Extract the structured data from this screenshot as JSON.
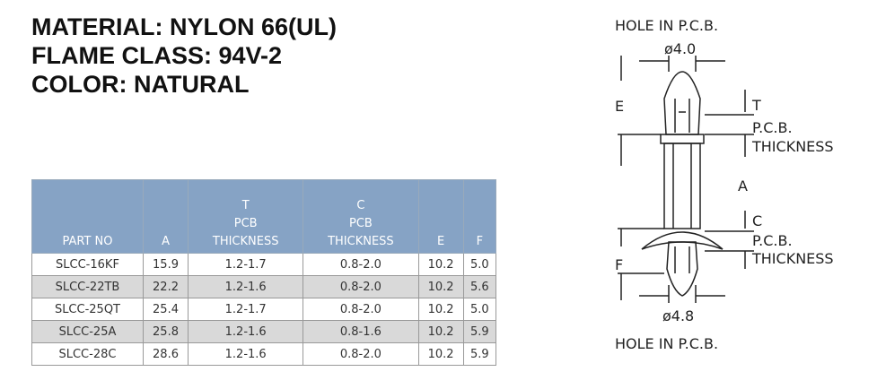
{
  "header": {
    "lines": [
      "MATERIAL: NYLON 66(UL)",
      "FLAME CLASS: 94V-2",
      "COLOR: NATURAL"
    ]
  },
  "table": {
    "headers": [
      [
        "PART NO"
      ],
      [
        "A"
      ],
      [
        "T",
        "PCB",
        "THICKNESS"
      ],
      [
        "C",
        "PCB",
        "THICKNESS"
      ],
      [
        "E"
      ],
      [
        "F"
      ]
    ],
    "rows": [
      [
        "SLCC-16KF",
        "15.9",
        "1.2-1.7",
        "0.8-2.0",
        "10.2",
        "5.0"
      ],
      [
        "SLCC-22TB",
        "22.2",
        "1.2-1.6",
        "0.8-2.0",
        "10.2",
        "5.6"
      ],
      [
        "SLCC-25QT",
        "25.4",
        "1.2-1.7",
        "0.8-2.0",
        "10.2",
        "5.0"
      ],
      [
        "SLCC-25A",
        "25.8",
        "1.2-1.6",
        "0.8-1.6",
        "10.2",
        "5.9"
      ],
      [
        "SLCC-28C",
        "28.6",
        "1.2-1.6",
        "0.8-2.0",
        "10.2",
        "5.9"
      ]
    ]
  },
  "diagram": {
    "hole_top": "HOLE IN P.C.B.",
    "dia_top": "ø4.0",
    "e": "E",
    "t": "T",
    "t_pcb": "P.C.B.",
    "t_thick": "THICKNESS",
    "a": "A",
    "c": "C",
    "c_pcb": "P.C.B.",
    "c_thick": "THICKNESS",
    "f": "F",
    "dia_bottom": "ø4.8",
    "hole_bottom": "HOLE IN P.C.B."
  }
}
